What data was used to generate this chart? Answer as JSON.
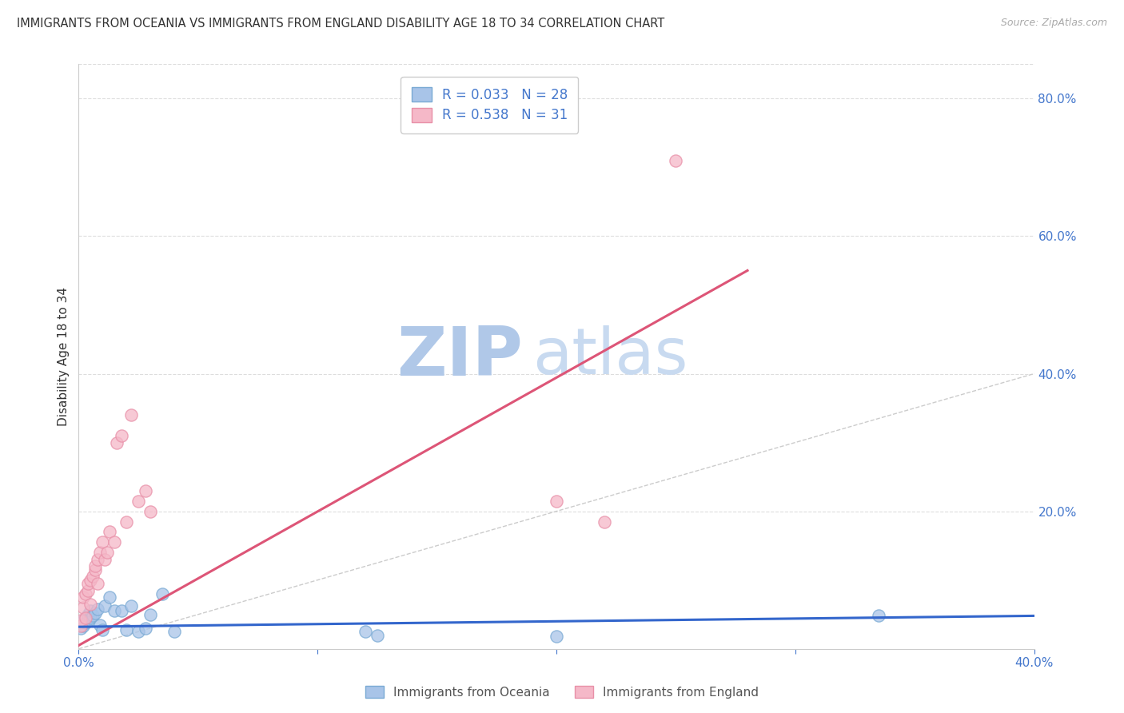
{
  "title": "IMMIGRANTS FROM OCEANIA VS IMMIGRANTS FROM ENGLAND DISABILITY AGE 18 TO 34 CORRELATION CHART",
  "source": "Source: ZipAtlas.com",
  "ylabel": "Disability Age 18 to 34",
  "xlim": [
    0.0,
    0.4
  ],
  "ylim": [
    0.0,
    0.85
  ],
  "oceania_color": "#a8c4e8",
  "oceania_edge_color": "#7aaad4",
  "england_color": "#f5b8c8",
  "england_edge_color": "#e890a8",
  "oceania_line_color": "#3366cc",
  "england_line_color": "#dd5577",
  "diagonal_color": "#cccccc",
  "watermark_zip_color": "#b0c8e8",
  "watermark_atlas_color": "#c8daf0",
  "R_oceania": 0.033,
  "N_oceania": 28,
  "R_england": 0.538,
  "N_england": 31,
  "england_line_x0": 0.0,
  "england_line_y0": 0.005,
  "england_line_x1": 0.28,
  "england_line_y1": 0.55,
  "oceania_line_x0": 0.0,
  "oceania_line_y0": 0.032,
  "oceania_line_x1": 0.4,
  "oceania_line_y1": 0.048,
  "oceania_x": [
    0.001,
    0.002,
    0.002,
    0.003,
    0.004,
    0.004,
    0.005,
    0.005,
    0.006,
    0.007,
    0.008,
    0.009,
    0.01,
    0.011,
    0.013,
    0.015,
    0.018,
    0.02,
    0.022,
    0.025,
    0.028,
    0.03,
    0.035,
    0.04,
    0.12,
    0.125,
    0.2,
    0.335
  ],
  "oceania_y": [
    0.03,
    0.033,
    0.042,
    0.038,
    0.04,
    0.05,
    0.045,
    0.055,
    0.048,
    0.052,
    0.058,
    0.035,
    0.028,
    0.062,
    0.075,
    0.055,
    0.055,
    0.028,
    0.062,
    0.025,
    0.03,
    0.05,
    0.08,
    0.025,
    0.025,
    0.02,
    0.018,
    0.048
  ],
  "england_x": [
    0.001,
    0.001,
    0.002,
    0.002,
    0.003,
    0.003,
    0.004,
    0.004,
    0.005,
    0.005,
    0.006,
    0.007,
    0.007,
    0.008,
    0.008,
    0.009,
    0.01,
    0.011,
    0.012,
    0.013,
    0.015,
    0.016,
    0.018,
    0.02,
    0.022,
    0.025,
    0.028,
    0.03,
    0.2,
    0.22,
    0.25
  ],
  "england_y": [
    0.033,
    0.042,
    0.06,
    0.075,
    0.045,
    0.08,
    0.085,
    0.095,
    0.065,
    0.1,
    0.105,
    0.115,
    0.12,
    0.13,
    0.095,
    0.14,
    0.155,
    0.13,
    0.14,
    0.17,
    0.155,
    0.3,
    0.31,
    0.185,
    0.34,
    0.215,
    0.23,
    0.2,
    0.215,
    0.185,
    0.71
  ],
  "background_color": "#ffffff",
  "grid_color": "#dddddd",
  "legend_text_color": "#4477cc",
  "axis_text_color": "#4477cc",
  "title_color": "#333333"
}
